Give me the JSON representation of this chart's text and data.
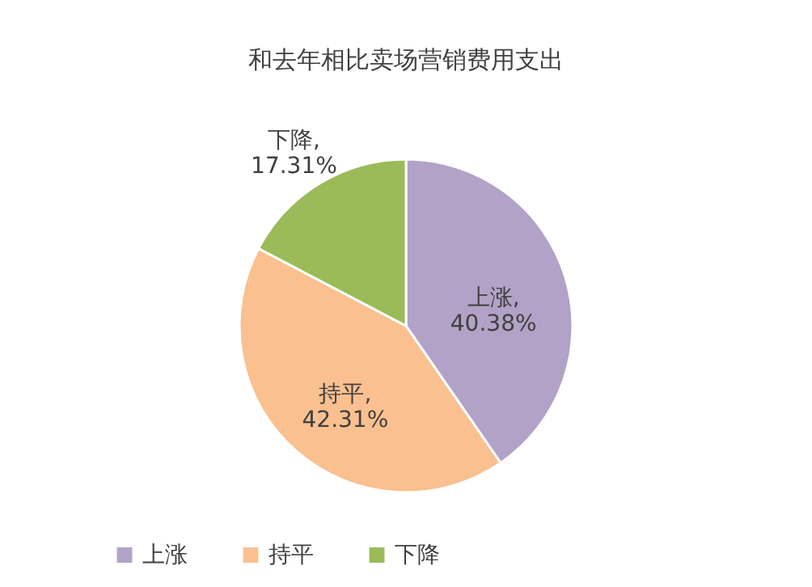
{
  "chart_data": {
    "type": "pie",
    "title": "和去年相比卖场营销费用支出",
    "categories": [
      "上涨",
      "持平",
      "下降"
    ],
    "values": [
      40.38,
      42.31,
      17.31
    ],
    "value_labels": [
      "上涨,\n40.38%",
      "持平,\n42.31%",
      "下降,\n17.31%"
    ],
    "colors": [
      "#b3a2c7",
      "#fac090",
      "#9bbb59"
    ],
    "legend": "bottom"
  }
}
